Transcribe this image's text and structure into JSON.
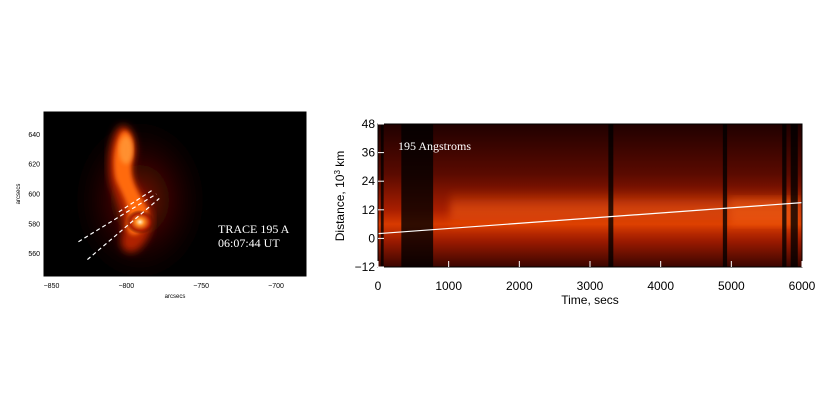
{
  "chart_data": [
    {
      "type": "heatmap",
      "panel": "left",
      "title": "",
      "xlabel": "arcsecs",
      "ylabel": "arcsecs",
      "xlim": [
        -855,
        -680
      ],
      "ylim": [
        545,
        655
      ],
      "x_ticks": [
        -850,
        -800,
        -750,
        -700
      ],
      "y_ticks": [
        560,
        580,
        600,
        620,
        640
      ],
      "annotation_line1": "TRACE 195 A",
      "annotation_line2": "06:07:44 UT",
      "colormap": [
        "#000000",
        "#5a0a00",
        "#b02000",
        "#ff6a10",
        "#ffe8b0"
      ],
      "dashed_lines": [
        {
          "x": [
            -832,
            -780
          ],
          "y": [
            568,
            600
          ]
        },
        {
          "x": [
            -826,
            -778
          ],
          "y": [
            556,
            597
          ]
        },
        {
          "x": [
            -805,
            -782
          ],
          "y": [
            588,
            603
          ]
        }
      ]
    },
    {
      "type": "heatmap",
      "panel": "right",
      "title": "",
      "xlabel": "Time, secs",
      "ylabel_main": "Distance, 10",
      "ylabel_sup": "3",
      "ylabel_unit": " km",
      "xlim": [
        0,
        6000
      ],
      "ylim": [
        -12,
        48
      ],
      "x_ticks": [
        0,
        1000,
        2000,
        3000,
        4000,
        5000,
        6000
      ],
      "y_ticks": [
        -12,
        0,
        12,
        24,
        36,
        48
      ],
      "annotation": "195 Angstroms",
      "colormap": [
        "#000000",
        "#5a0a00",
        "#b02000",
        "#ff6a10",
        "#ffe8b0"
      ],
      "dark_bands": [
        {
          "x": [
            40,
            80
          ]
        },
        {
          "x": [
            330,
            780
          ]
        },
        {
          "x": [
            3260,
            3330
          ]
        },
        {
          "x": [
            4880,
            4940
          ]
        },
        {
          "x": [
            5720,
            5780
          ]
        },
        {
          "x": [
            5840,
            5940
          ]
        }
      ],
      "fit_line": {
        "x": [
          0,
          6000
        ],
        "y": [
          2,
          15
        ]
      }
    }
  ]
}
